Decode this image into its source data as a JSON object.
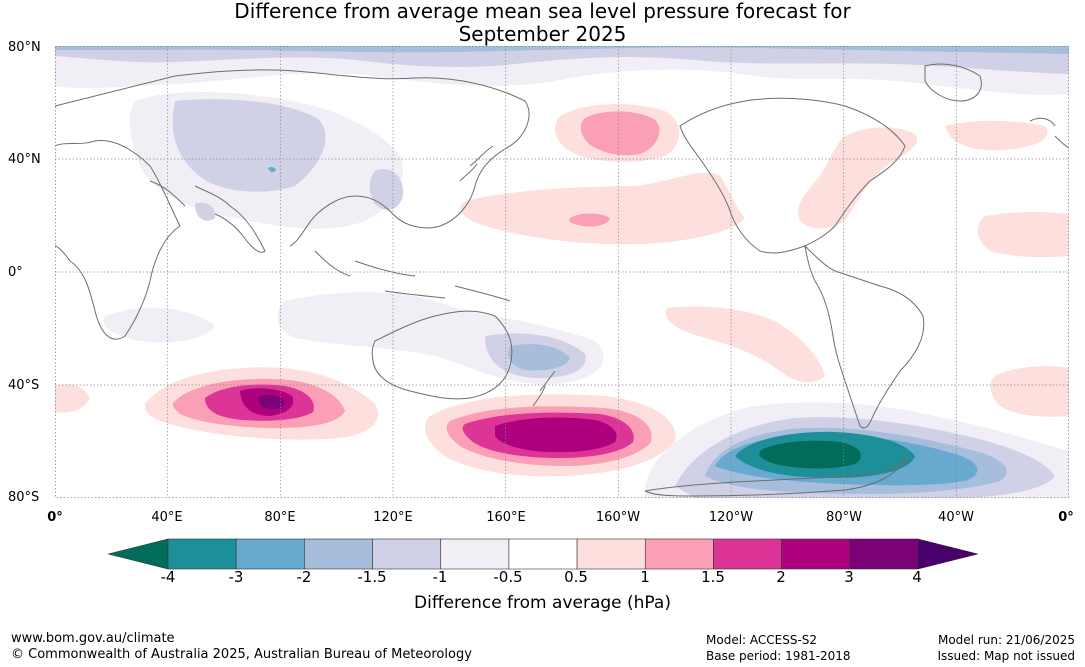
{
  "title_line1": "Difference from average mean sea level pressure forecast for",
  "title_line2": "September 2025",
  "lat_labels": [
    "80°N",
    "40°N",
    "0°",
    "40°S",
    "80°S"
  ],
  "lon_labels": [
    "0°",
    "40°E",
    "80°E",
    "120°E",
    "160°E",
    "160°W",
    "120°W",
    "80°W",
    "40°W",
    "0°"
  ],
  "colorbar": {
    "ticks": [
      "-4",
      "-3",
      "-2",
      "-1.5",
      "-1",
      "-0.5",
      "0.5",
      "1",
      "1.5",
      "2",
      "3",
      "4"
    ],
    "colors": [
      "#016c59",
      "#1c8f98",
      "#67a9cf",
      "#a6bddb",
      "#d0d1e6",
      "#f1eef6",
      "#ffffff",
      "#fde0dd",
      "#fa9fb5",
      "#dd3497",
      "#ae017e",
      "#7a0177",
      "#49006a"
    ],
    "label": "Difference from average (hPa)"
  },
  "footer": {
    "url": "www.bom.gov.au/climate",
    "copyright": "© Commonwealth of Australia 2025, Australian Bureau of Meteorology",
    "model": "Model: ACCESS-S2",
    "base_period": "Base period: 1981-2018",
    "model_run": "Model run: 21/06/2025",
    "issued": "Issued: Map not issued"
  }
}
